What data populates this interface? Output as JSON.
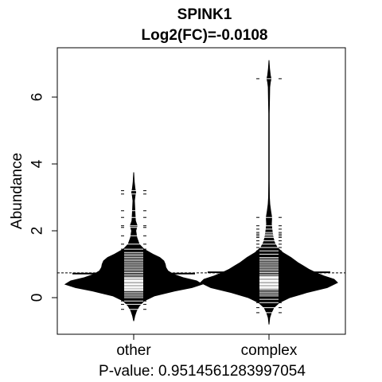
{
  "chart_data": {
    "type": "violin",
    "title": "SPINK1",
    "subtitle": "Log2(FC)=-0.0108",
    "xlabel": "P-value: 0.9514561283997054",
    "ylabel": "Abundance",
    "categories": [
      "other",
      "complex"
    ],
    "yticks": [
      0,
      2,
      4,
      6
    ],
    "ylim": [
      -1.1,
      7.2
    ],
    "grid": false,
    "overall_mean": 0.74,
    "series": [
      {
        "category": "other",
        "group_mean": 0.72,
        "density": [
          [
            -0.7,
            0.0
          ],
          [
            -0.55,
            0.015
          ],
          [
            -0.4,
            0.04
          ],
          [
            -0.25,
            0.08
          ],
          [
            -0.1,
            0.15
          ],
          [
            0.05,
            0.3
          ],
          [
            0.2,
            0.6
          ],
          [
            0.3,
            0.85
          ],
          [
            0.4,
            1.0
          ],
          [
            0.5,
            0.92
          ],
          [
            0.6,
            0.72
          ],
          [
            0.7,
            0.58
          ],
          [
            0.8,
            0.5
          ],
          [
            0.9,
            0.47
          ],
          [
            1.0,
            0.46
          ],
          [
            1.1,
            0.44
          ],
          [
            1.2,
            0.38
          ],
          [
            1.3,
            0.28
          ],
          [
            1.45,
            0.15
          ],
          [
            1.6,
            0.08
          ],
          [
            1.8,
            0.045
          ],
          [
            2.0,
            0.03
          ],
          [
            2.15,
            0.05
          ],
          [
            2.3,
            0.025
          ],
          [
            2.5,
            0.02
          ],
          [
            2.7,
            0.015
          ],
          [
            2.9,
            0.01
          ],
          [
            3.05,
            0.02
          ],
          [
            3.15,
            0.03
          ],
          [
            3.25,
            0.02
          ],
          [
            3.45,
            0.008
          ],
          [
            3.75,
            0.0
          ]
        ],
        "values": [
          -0.35,
          -0.2,
          -0.1,
          0.0,
          0.05,
          0.1,
          0.15,
          0.2,
          0.22,
          0.25,
          0.28,
          0.3,
          0.32,
          0.35,
          0.38,
          0.4,
          0.42,
          0.45,
          0.48,
          0.5,
          0.52,
          0.55,
          0.58,
          0.6,
          0.65,
          0.7,
          0.75,
          0.8,
          0.85,
          0.9,
          0.95,
          1.0,
          1.05,
          1.1,
          1.15,
          1.2,
          1.25,
          1.3,
          1.35,
          1.45,
          1.6,
          1.85,
          2.1,
          2.15,
          2.4,
          2.6,
          3.1,
          3.2
        ]
      },
      {
        "category": "complex",
        "group_mean": 0.76,
        "density": [
          [
            -0.8,
            0.0
          ],
          [
            -0.6,
            0.01
          ],
          [
            -0.45,
            0.035
          ],
          [
            -0.3,
            0.07
          ],
          [
            -0.15,
            0.15
          ],
          [
            0.0,
            0.3
          ],
          [
            0.15,
            0.55
          ],
          [
            0.3,
            0.85
          ],
          [
            0.45,
            1.0
          ],
          [
            0.55,
            0.95
          ],
          [
            0.65,
            0.8
          ],
          [
            0.75,
            0.68
          ],
          [
            0.85,
            0.58
          ],
          [
            0.95,
            0.5
          ],
          [
            1.05,
            0.42
          ],
          [
            1.2,
            0.32
          ],
          [
            1.35,
            0.2
          ],
          [
            1.5,
            0.12
          ],
          [
            1.65,
            0.08
          ],
          [
            1.8,
            0.06
          ],
          [
            2.0,
            0.045
          ],
          [
            2.2,
            0.035
          ],
          [
            2.4,
            0.04
          ],
          [
            2.6,
            0.025
          ],
          [
            2.8,
            0.012
          ],
          [
            3.0,
            0.006
          ],
          [
            3.5,
            0.004
          ],
          [
            4.5,
            0.003
          ],
          [
            5.5,
            0.003
          ],
          [
            6.3,
            0.01
          ],
          [
            6.45,
            0.02
          ],
          [
            6.55,
            0.03
          ],
          [
            6.65,
            0.02
          ],
          [
            6.85,
            0.008
          ],
          [
            7.1,
            0.0
          ]
        ],
        "values": [
          -0.45,
          -0.3,
          -0.15,
          -0.05,
          0.05,
          0.1,
          0.15,
          0.2,
          0.25,
          0.28,
          0.3,
          0.32,
          0.35,
          0.38,
          0.4,
          0.42,
          0.45,
          0.48,
          0.5,
          0.52,
          0.55,
          0.58,
          0.6,
          0.62,
          0.65,
          0.7,
          0.75,
          0.8,
          0.85,
          0.9,
          0.95,
          1.0,
          1.05,
          1.1,
          1.15,
          1.2,
          1.3,
          1.4,
          1.5,
          1.6,
          1.7,
          1.8,
          1.85,
          1.9,
          1.95,
          2.05,
          2.15,
          2.4,
          6.55
        ]
      }
    ]
  }
}
